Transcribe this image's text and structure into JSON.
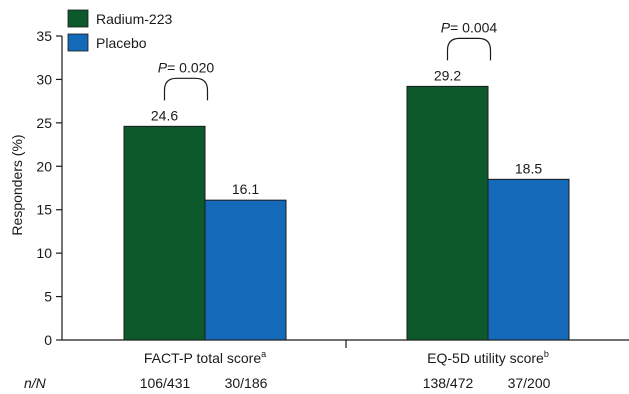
{
  "chart_data": {
    "type": "bar",
    "categories": [
      {
        "label": "FACT-P total score",
        "sup": "a"
      },
      {
        "label": "EQ-5D utility score",
        "sup": "b"
      }
    ],
    "series": [
      {
        "name": "Radium-223",
        "color": "#0c5a2c",
        "values": [
          24.6,
          29.2
        ],
        "value_labels": [
          "24.6",
          "29.2"
        ],
        "n_over_N": [
          "106/431",
          "138/472"
        ]
      },
      {
        "name": "Placebo",
        "color": "#1469b8",
        "values": [
          16.1,
          18.5
        ],
        "value_labels": [
          "16.1",
          "18.5"
        ],
        "n_over_N": [
          "30/186",
          "37/200"
        ]
      }
    ],
    "ylabel": "Responders (%)",
    "ylim": [
      0,
      35
    ],
    "yticks": [
      0,
      5,
      10,
      15,
      20,
      25,
      30,
      35
    ],
    "grid": false,
    "legend_position": "top-left",
    "p_value_prefix": "P",
    "p_values": [
      "= 0.020",
      "= 0.004"
    ],
    "n_row_label": "n/N"
  }
}
